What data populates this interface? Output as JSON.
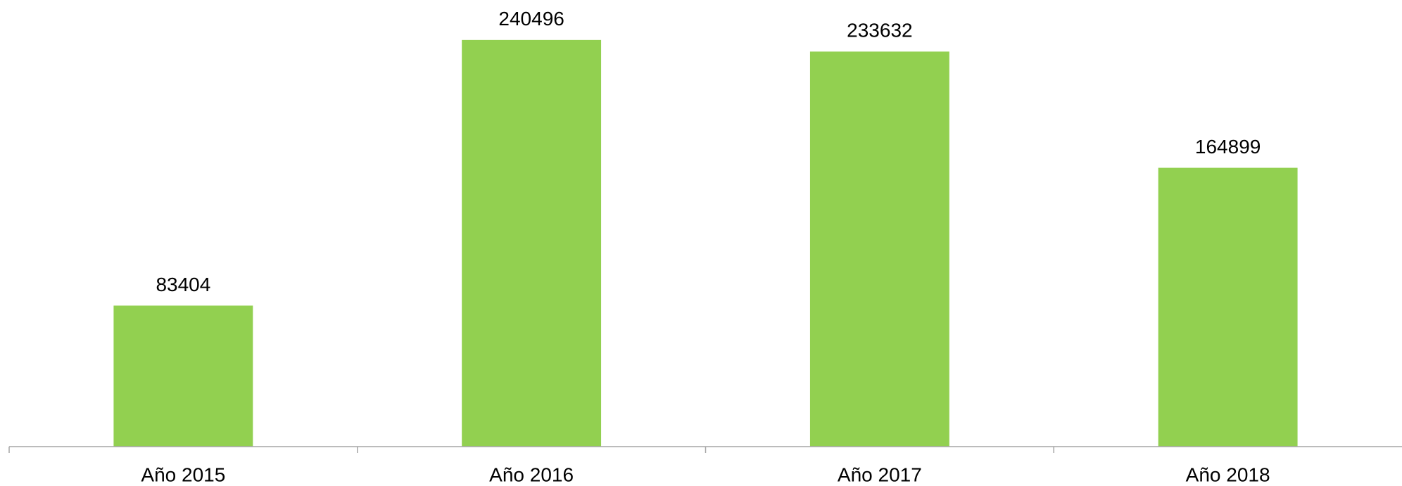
{
  "chart_data": {
    "type": "bar",
    "categories": [
      "Año 2015",
      "Año 2016",
      "Año 2017",
      "Año 2018"
    ],
    "values": [
      83404,
      240496,
      233632,
      164899
    ],
    "color": "#92d050",
    "ylim": [
      0,
      250000
    ]
  }
}
